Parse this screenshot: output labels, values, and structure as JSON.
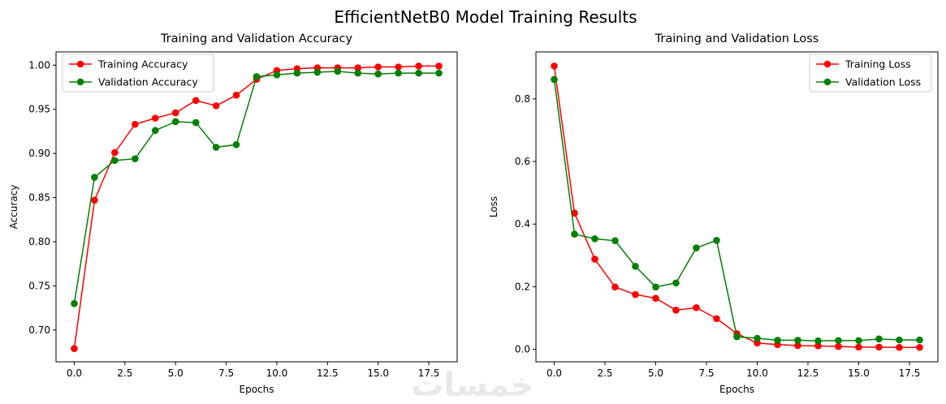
{
  "figure": {
    "title": "EfficientNetB0 Model Training Results",
    "watermark": "خمسات"
  },
  "chart_data": [
    {
      "type": "line",
      "title": "Training and Validation Accuracy",
      "xlabel": "Epochs",
      "ylabel": "Accuracy",
      "xlim": [
        -0.9,
        18.9
      ],
      "ylim": [
        0.664,
        1.015
      ],
      "xticks": [
        0.0,
        2.5,
        5.0,
        7.5,
        10.0,
        12.5,
        15.0,
        17.5
      ],
      "xtick_labels": [
        "0.0",
        "2.5",
        "5.0",
        "7.5",
        "10.0",
        "12.5",
        "15.0",
        "17.5"
      ],
      "yticks": [
        0.7,
        0.75,
        0.8,
        0.85,
        0.9,
        0.95,
        1.0
      ],
      "ytick_labels": [
        "0.70",
        "0.75",
        "0.80",
        "0.85",
        "0.90",
        "0.95",
        "1.00"
      ],
      "legend_position": "upper-left",
      "x": [
        0,
        1,
        2,
        3,
        4,
        5,
        6,
        7,
        8,
        9,
        10,
        11,
        12,
        13,
        14,
        15,
        16,
        17,
        18
      ],
      "series": [
        {
          "name": "Training Accuracy",
          "color": "#ff0000",
          "values": [
            0.679,
            0.847,
            0.901,
            0.933,
            0.94,
            0.946,
            0.96,
            0.954,
            0.966,
            0.984,
            0.994,
            0.996,
            0.997,
            0.997,
            0.997,
            0.998,
            0.998,
            0.999,
            0.999
          ]
        },
        {
          "name": "Validation Accuracy",
          "color": "#008000",
          "values": [
            0.73,
            0.873,
            0.892,
            0.894,
            0.926,
            0.936,
            0.935,
            0.907,
            0.91,
            0.987,
            0.989,
            0.991,
            0.992,
            0.993,
            0.991,
            0.99,
            0.991,
            0.991,
            0.991
          ]
        }
      ]
    },
    {
      "type": "line",
      "title": "Training and Validation Loss",
      "xlabel": "Epochs",
      "ylabel": "Loss",
      "xlim": [
        -0.9,
        18.9
      ],
      "ylim": [
        -0.04,
        0.95
      ],
      "xticks": [
        0.0,
        2.5,
        5.0,
        7.5,
        10.0,
        12.5,
        15.0,
        17.5
      ],
      "xtick_labels": [
        "0.0",
        "2.5",
        "5.0",
        "7.5",
        "10.0",
        "12.5",
        "15.0",
        "17.5"
      ],
      "yticks": [
        0.0,
        0.2,
        0.4,
        0.6,
        0.8
      ],
      "ytick_labels": [
        "0.0",
        "0.2",
        "0.4",
        "0.6",
        "0.8"
      ],
      "legend_position": "upper-right",
      "x": [
        0,
        1,
        2,
        3,
        4,
        5,
        6,
        7,
        8,
        9,
        10,
        11,
        12,
        13,
        14,
        15,
        16,
        17,
        18
      ],
      "series": [
        {
          "name": "Training Loss",
          "color": "#ff0000",
          "values": [
            0.905,
            0.435,
            0.288,
            0.199,
            0.175,
            0.163,
            0.125,
            0.133,
            0.098,
            0.05,
            0.02,
            0.015,
            0.012,
            0.011,
            0.009,
            0.007,
            0.007,
            0.006,
            0.006
          ]
        },
        {
          "name": "Validation Loss",
          "color": "#008000",
          "values": [
            0.862,
            0.368,
            0.353,
            0.347,
            0.265,
            0.199,
            0.212,
            0.324,
            0.348,
            0.04,
            0.035,
            0.029,
            0.029,
            0.027,
            0.028,
            0.028,
            0.033,
            0.03,
            0.03
          ]
        }
      ]
    }
  ]
}
